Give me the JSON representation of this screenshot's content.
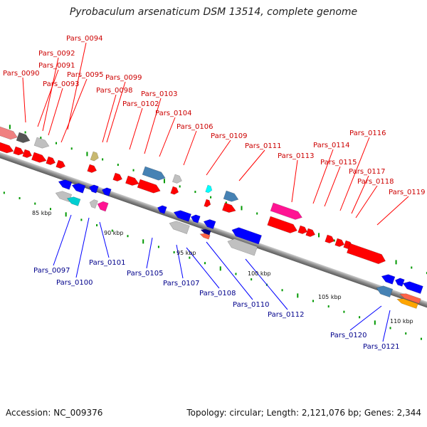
{
  "title": "Pyrobaculum arsenaticum DSM 13514, complete genome",
  "footer": {
    "accession": "Accession: NC_009376",
    "summary": "Topology: circular; Length: 2,121,076 bp; Genes: 2,344"
  },
  "colors": {
    "forward": "#ff0000",
    "reverse": "#0000ff",
    "forward_label": "#cc0000",
    "reverse_label": "#00008b",
    "backbone": "#808080",
    "tick": "#009900"
  },
  "kbp_markers": [
    "85 kbp",
    "90 kbp",
    "95 kbp",
    "100 kbp",
    "105 kbp",
    "110 kbp"
  ],
  "top_labels": [
    "Pars_0090",
    "Pars_0091",
    "Pars_0092",
    "Pars_0093",
    "Pars_0094",
    "Pars_0095",
    "Pars_0098",
    "Pars_0099",
    "Pars_0102",
    "Pars_0103",
    "Pars_0104",
    "Pars_0106",
    "Pars_0109",
    "Pars_0111",
    "Pars_0113",
    "Pars_0114",
    "Pars_0115",
    "Pars_0116",
    "Pars_0117",
    "Pars_0118",
    "Pars_0119"
  ],
  "bottom_labels": [
    "Pars_0097",
    "Pars_0100",
    "Pars_0101",
    "Pars_0105",
    "Pars_0107",
    "Pars_0108",
    "Pars_0110",
    "Pars_0112",
    "Pars_0120",
    "Pars_0121"
  ]
}
